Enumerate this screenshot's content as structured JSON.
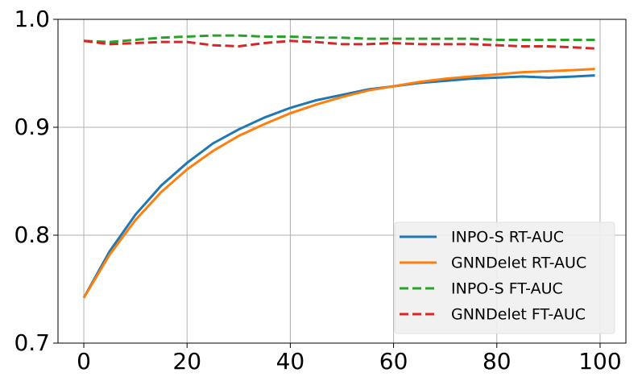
{
  "chart_data": {
    "type": "line",
    "x": [
      0,
      5,
      10,
      15,
      20,
      25,
      30,
      35,
      40,
      45,
      50,
      55,
      60,
      65,
      70,
      75,
      80,
      85,
      90,
      95,
      99
    ],
    "series": [
      {
        "name": "INPO-S RT-AUC",
        "color": "#1f77b4",
        "linestyle": "solid",
        "values": [
          0.742,
          0.785,
          0.819,
          0.846,
          0.867,
          0.885,
          0.898,
          0.909,
          0.918,
          0.925,
          0.93,
          0.935,
          0.938,
          0.941,
          0.943,
          0.945,
          0.946,
          0.947,
          0.946,
          0.947,
          0.948
        ]
      },
      {
        "name": "GNNDelet RT-AUC",
        "color": "#ff7f0e",
        "linestyle": "solid",
        "values": [
          0.742,
          0.782,
          0.814,
          0.84,
          0.861,
          0.878,
          0.892,
          0.903,
          0.913,
          0.921,
          0.928,
          0.934,
          0.938,
          0.942,
          0.945,
          0.947,
          0.949,
          0.951,
          0.952,
          0.953,
          0.954
        ]
      },
      {
        "name": "INPO-S FT-AUC",
        "color": "#2ca02c",
        "linestyle": "dashed",
        "values": [
          0.98,
          0.979,
          0.981,
          0.983,
          0.984,
          0.985,
          0.985,
          0.984,
          0.984,
          0.983,
          0.983,
          0.982,
          0.982,
          0.982,
          0.982,
          0.982,
          0.981,
          0.981,
          0.981,
          0.981,
          0.981
        ]
      },
      {
        "name": "GNNDelet FT-AUC",
        "color": "#d62728",
        "linestyle": "dashed",
        "values": [
          0.98,
          0.977,
          0.978,
          0.979,
          0.979,
          0.976,
          0.975,
          0.978,
          0.98,
          0.979,
          0.977,
          0.977,
          0.978,
          0.977,
          0.977,
          0.977,
          0.976,
          0.975,
          0.975,
          0.974,
          0.973
        ]
      }
    ],
    "xlim": [
      -5,
      105
    ],
    "xticks": [
      0,
      20,
      40,
      60,
      80,
      100
    ],
    "ylim": [
      0.7,
      1.0
    ],
    "yticks": [
      0.7,
      0.8,
      0.9,
      {
        "value": 1.0,
        "label": "1.0"
      }
    ],
    "grid": true,
    "legend": "lower right"
  }
}
